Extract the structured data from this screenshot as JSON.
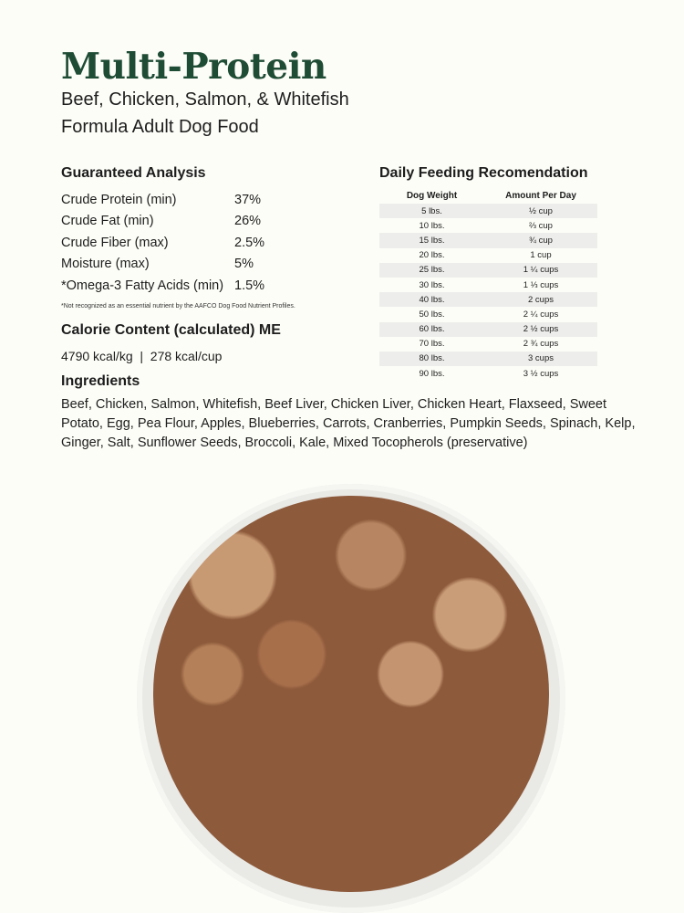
{
  "title": "Multi-Protein",
  "subtitle_line1": "Beef, Chicken, Salmon, & Whitefish",
  "subtitle_line2": "Formula Adult Dog Food",
  "analysis": {
    "heading": "Guaranteed Analysis",
    "rows": [
      {
        "label": "Crude Protein (min)",
        "value": "37%"
      },
      {
        "label": "Crude Fat (min)",
        "value": "26%"
      },
      {
        "label": "Crude Fiber (max)",
        "value": "2.5%"
      },
      {
        "label": "Moisture (max)",
        "value": "5%"
      },
      {
        "label": "*Omega-3 Fatty Acids (min)",
        "value": "1.5%"
      }
    ],
    "note": "*Not recognized as an essential nutrient by the AAFCO Dog Food Nutrient Profiles."
  },
  "calorie": {
    "heading": "Calorie Content (calculated) ME",
    "value": "4790 kcal/kg  |  278 kcal/cup"
  },
  "ingredients": {
    "heading": "Ingredients",
    "text": "Beef, Chicken, Salmon, Whitefish, Beef Liver, Chicken Liver, Chicken Heart, Flaxseed, Sweet Potato, Egg, Pea Flour, Apples, Blueberries, Carrots, Cranberries, Pumpkin Seeds, Spinach, Kelp, Ginger, Salt, Sunflower Seeds, Broccoli, Kale, Mixed Tocopherols (preservative)"
  },
  "feeding": {
    "heading": "Daily Feeding Recomendation",
    "columns": [
      "Dog Weight",
      "Amount Per Day"
    ],
    "rows": [
      [
        "5 lbs.",
        "½ cup"
      ],
      [
        "10 lbs.",
        "⅔ cup"
      ],
      [
        "15 lbs.",
        "¾ cup"
      ],
      [
        "20 lbs.",
        "1 cup"
      ],
      [
        "25 lbs.",
        "1 ¼ cups"
      ],
      [
        "30 lbs.",
        "1 ⅓ cups"
      ],
      [
        "40 lbs.",
        "2 cups"
      ],
      [
        "50 lbs.",
        "2 ¼ cups"
      ],
      [
        "60 lbs.",
        "2 ½ cups"
      ],
      [
        "70 lbs.",
        "2 ¾ cups"
      ],
      [
        "80 lbs.",
        "3 cups"
      ],
      [
        "90 lbs.",
        "3 ½ cups"
      ]
    ]
  },
  "colors": {
    "title": "#1f4c34",
    "stripe": "#ededeb",
    "background": "#fdfdf8"
  }
}
